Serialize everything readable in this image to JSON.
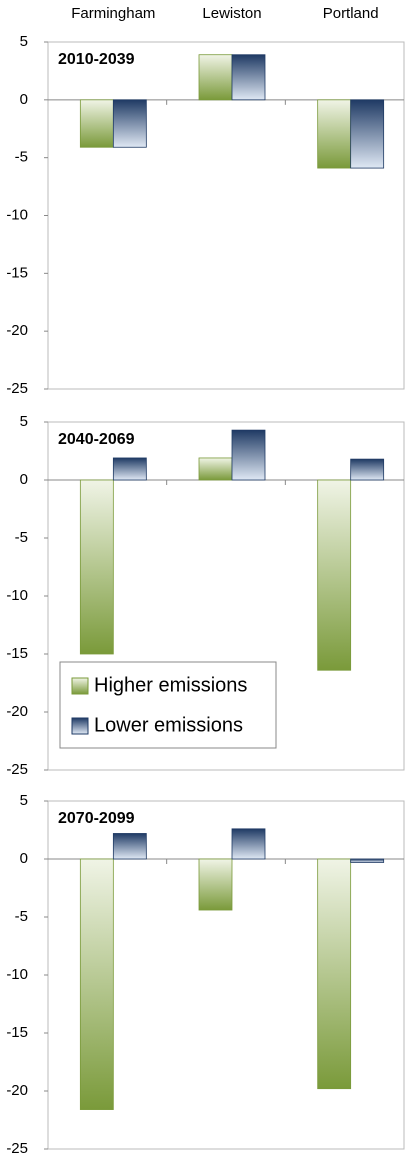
{
  "chart_data": [
    {
      "type": "bar",
      "title": "2010-2039",
      "categories": [
        "Farmingham",
        "Lewiston",
        "Portland"
      ],
      "series": [
        {
          "color": "#7a9a3a",
          "values": [
            -4.1,
            3.9,
            -5.9
          ]
        },
        {
          "color": "#1f3a64",
          "values": [
            -4.1,
            3.9,
            -5.9
          ]
        }
      ],
      "ylim": [
        -25,
        5
      ],
      "yticks": [
        5,
        0,
        -5,
        -10,
        -15,
        -20,
        -25
      ]
    },
    {
      "type": "bar",
      "title": "2040-2069",
      "legend": "lower-left",
      "series": [
        {
          "name": "Higher emissions",
          "color": "#7a9a3a",
          "values": [
            -15,
            1.9,
            -16.4
          ]
        },
        {
          "name": "Lower emissions",
          "color": "#1f3a64",
          "values": [
            1.9,
            4.3,
            1.8
          ]
        }
      ],
      "ylim": [
        -25,
        5
      ],
      "yticks": [
        5,
        0,
        -5,
        -10,
        -15,
        -20,
        -25
      ]
    },
    {
      "type": "bar",
      "title": "2070-2099",
      "series": [
        {
          "color": "#7a9a3a",
          "values": [
            -21.6,
            -4.4,
            -19.8
          ]
        },
        {
          "color": "#1f3a64",
          "values": [
            2.2,
            2.6,
            -0.3
          ]
        }
      ],
      "ylim": [
        -25,
        5
      ],
      "yticks": [
        5,
        0,
        -5,
        -10,
        -15,
        -20,
        -25
      ]
    }
  ]
}
